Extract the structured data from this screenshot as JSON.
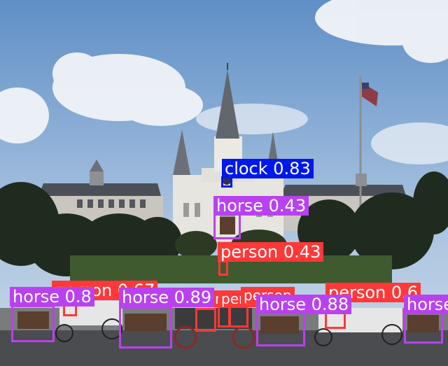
{
  "colors": {
    "person": "#ff3838",
    "horse": "#b941f0",
    "clock": "#0018ec"
  },
  "detections": [
    {
      "label": "clock 0.83",
      "cls": "clock"
    },
    {
      "label": "horse 0.43",
      "cls": "horse"
    },
    {
      "label": "person 0.43",
      "cls": "person"
    },
    {
      "label": "person 0.67",
      "cls": "person"
    },
    {
      "label": "person 0.6",
      "cls": "person"
    },
    {
      "label": "person",
      "cls": "person"
    },
    {
      "label": "person",
      "cls": "person"
    },
    {
      "label": "person",
      "cls": "person"
    },
    {
      "label": "horse 0.8",
      "cls": "horse"
    },
    {
      "label": "horse 0.89",
      "cls": "horse"
    },
    {
      "label": "horse 0.88",
      "cls": "horse"
    },
    {
      "label": "horse",
      "cls": "horse"
    }
  ]
}
